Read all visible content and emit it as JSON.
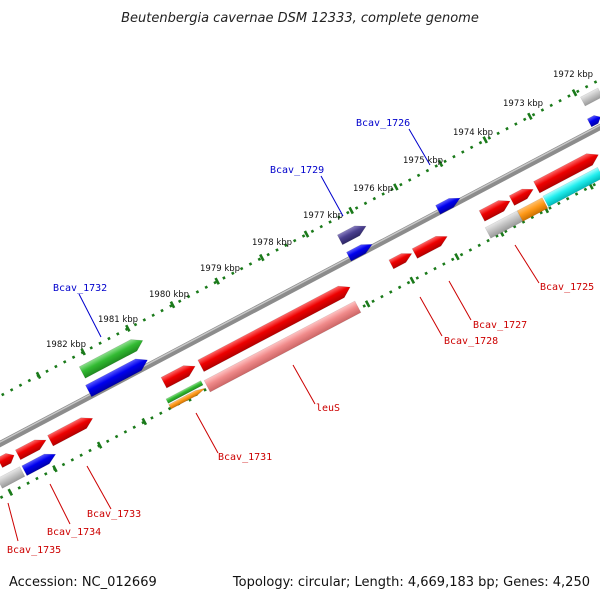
{
  "title": "Beutenbergia cavernae DSM 12333, complete genome",
  "footer": {
    "accession": "Accession: NC_012669",
    "summary": "Topology: circular; Length: 4,669,183 bp; Genes: 4,250"
  },
  "colors": {
    "backbone": "#888888",
    "tick": "#1a7a1a",
    "label_blue": "#0000cc",
    "label_red": "#cc0000"
  },
  "scale_ticks": [
    {
      "label": "1972 kbp"
    },
    {
      "label": "1973 kbp"
    },
    {
      "label": "1974 kbp"
    },
    {
      "label": "1975 kbp"
    },
    {
      "label": "1976 kbp"
    },
    {
      "label": "1977 kbp"
    },
    {
      "label": "1978 kbp"
    },
    {
      "label": "1979 kbp"
    },
    {
      "label": "1980 kbp"
    },
    {
      "label": "1981 kbp"
    },
    {
      "label": "1982 kbp"
    }
  ],
  "gene_labels": {
    "bcav_1726": "Bcav_1726",
    "bcav_1729": "Bcav_1729",
    "bcav_1732": "Bcav_1732",
    "bcav_1725": "Bcav_1725",
    "bcav_1727": "Bcav_1727",
    "bcav_1728": "Bcav_1728",
    "leus": "leuS",
    "bcav_1731": "Bcav_1731",
    "bcav_1733": "Bcav_1733",
    "bcav_1734": "Bcav_1734",
    "bcav_1735": "Bcav_1735"
  }
}
